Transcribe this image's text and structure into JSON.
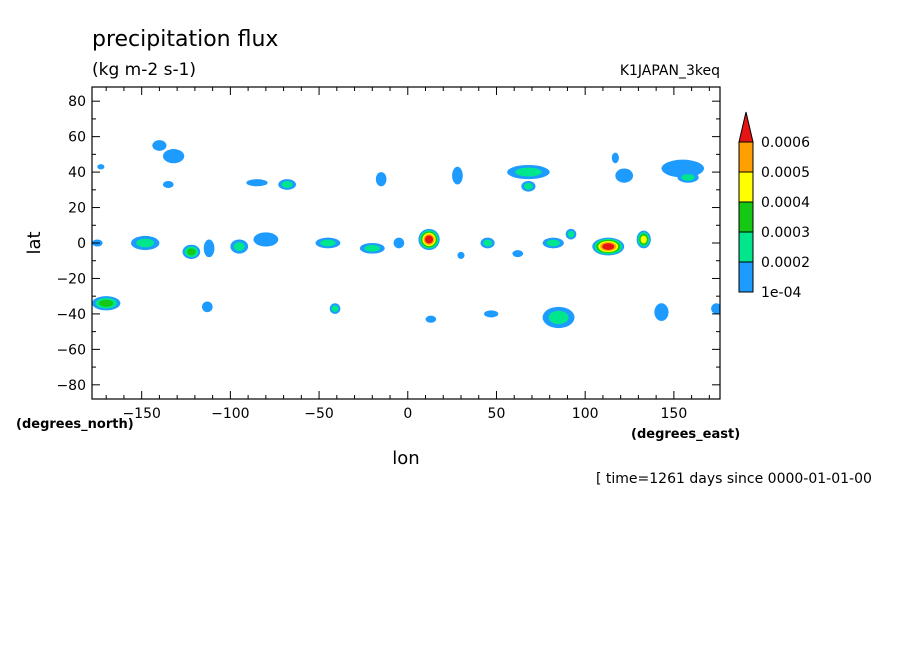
{
  "chart_data": {
    "type": "contour",
    "title": "precipitation flux",
    "subtitle": "(kg m-2 s-1)",
    "dataset": "K1JAPAN_3keq",
    "xlabel": "lon",
    "ylabel": "lat",
    "x_unit": "(degrees_east)",
    "y_unit": "(degrees_north)",
    "time_label": "[ time=1261 days since 0000-01-01-00",
    "xlim": [
      -178,
      176
    ],
    "ylim": [
      -88,
      88
    ],
    "x_ticks": [
      -150,
      -100,
      -50,
      0,
      50,
      100,
      150
    ],
    "x_tick_labels": [
      "−150",
      "−100",
      "−50",
      "0",
      "50",
      "100",
      "150"
    ],
    "y_ticks": [
      80,
      60,
      40,
      20,
      0,
      -20,
      -40,
      -60,
      -80
    ],
    "y_tick_labels": [
      "80",
      "60",
      "40",
      "20",
      "0",
      "−20",
      "−40",
      "−60",
      "−80"
    ],
    "grid": false,
    "colorbar": {
      "placement": "right",
      "levels": [
        "1e-04",
        "0.0002",
        "0.0003",
        "0.0004",
        "0.0005",
        "0.0006"
      ],
      "colors": [
        "#1e9bff",
        "#00e68c",
        "#14c814",
        "#ffff00",
        "#ffa000",
        "#e61414"
      ]
    },
    "features": [
      {
        "lon": -140,
        "lat": 55,
        "rx": 4,
        "ry": 3,
        "level": 1
      },
      {
        "lon": -132,
        "lat": 49,
        "rx": 6,
        "ry": 4,
        "level": 1
      },
      {
        "lon": -135,
        "lat": 33,
        "rx": 3,
        "ry": 2,
        "level": 1
      },
      {
        "lon": -173,
        "lat": 43,
        "rx": 2,
        "ry": 1.5,
        "level": 1
      },
      {
        "lon": -85,
        "lat": 34,
        "rx": 6,
        "ry": 2,
        "level": 1
      },
      {
        "lon": -68,
        "lat": 33,
        "rx": 5,
        "ry": 3,
        "level": 2
      },
      {
        "lon": -15,
        "lat": 36,
        "rx": 3,
        "ry": 4,
        "level": 1
      },
      {
        "lon": 28,
        "lat": 38,
        "rx": 3,
        "ry": 5,
        "level": 1
      },
      {
        "lon": 68,
        "lat": 40,
        "rx": 12,
        "ry": 4,
        "level": 2
      },
      {
        "lon": 68,
        "lat": 32,
        "rx": 4,
        "ry": 3,
        "level": 2
      },
      {
        "lon": 117,
        "lat": 48,
        "rx": 2,
        "ry": 3,
        "level": 1
      },
      {
        "lon": 122,
        "lat": 38,
        "rx": 5,
        "ry": 4,
        "level": 1
      },
      {
        "lon": 155,
        "lat": 42,
        "rx": 12,
        "ry": 5,
        "level": 1
      },
      {
        "lon": 158,
        "lat": 37,
        "rx": 6,
        "ry": 3,
        "level": 2
      },
      {
        "lon": -175,
        "lat": 0,
        "rx": 3,
        "ry": 2,
        "level": 1
      },
      {
        "lon": -148,
        "lat": 0,
        "rx": 8,
        "ry": 4,
        "level": 2
      },
      {
        "lon": -122,
        "lat": -5,
        "rx": 5,
        "ry": 4,
        "level": 3
      },
      {
        "lon": -112,
        "lat": -3,
        "rx": 3,
        "ry": 5,
        "level": 1
      },
      {
        "lon": -95,
        "lat": -2,
        "rx": 5,
        "ry": 4,
        "level": 2
      },
      {
        "lon": -80,
        "lat": 2,
        "rx": 7,
        "ry": 4,
        "level": 1
      },
      {
        "lon": -45,
        "lat": 0,
        "rx": 7,
        "ry": 3,
        "level": 2
      },
      {
        "lon": -20,
        "lat": -3,
        "rx": 7,
        "ry": 3,
        "level": 2
      },
      {
        "lon": -5,
        "lat": 0,
        "rx": 3,
        "ry": 3,
        "level": 1
      },
      {
        "lon": 12,
        "lat": 2,
        "rx": 6,
        "ry": 6,
        "level": 6
      },
      {
        "lon": 30,
        "lat": -7,
        "rx": 2,
        "ry": 2,
        "level": 1
      },
      {
        "lon": 45,
        "lat": 0,
        "rx": 4,
        "ry": 3,
        "level": 2
      },
      {
        "lon": 62,
        "lat": -6,
        "rx": 3,
        "ry": 2,
        "level": 1
      },
      {
        "lon": 82,
        "lat": 0,
        "rx": 6,
        "ry": 3,
        "level": 2
      },
      {
        "lon": 92,
        "lat": 5,
        "rx": 3,
        "ry": 3,
        "level": 2
      },
      {
        "lon": 113,
        "lat": -2,
        "rx": 9,
        "ry": 5,
        "level": 6
      },
      {
        "lon": 133,
        "lat": 2,
        "rx": 4,
        "ry": 5,
        "level": 4
      },
      {
        "lon": -170,
        "lat": -34,
        "rx": 8,
        "ry": 4,
        "level": 3
      },
      {
        "lon": -113,
        "lat": -36,
        "rx": 3,
        "ry": 3,
        "level": 1
      },
      {
        "lon": -41,
        "lat": -37,
        "rx": 3,
        "ry": 3,
        "level": 2
      },
      {
        "lon": 13,
        "lat": -43,
        "rx": 3,
        "ry": 2,
        "level": 1
      },
      {
        "lon": 47,
        "lat": -40,
        "rx": 4,
        "ry": 2,
        "level": 1
      },
      {
        "lon": 85,
        "lat": -42,
        "rx": 9,
        "ry": 6,
        "level": 2
      },
      {
        "lon": 143,
        "lat": -39,
        "rx": 4,
        "ry": 5,
        "level": 1
      },
      {
        "lon": 174,
        "lat": -37,
        "rx": 3,
        "ry": 3,
        "level": 1
      }
    ]
  }
}
